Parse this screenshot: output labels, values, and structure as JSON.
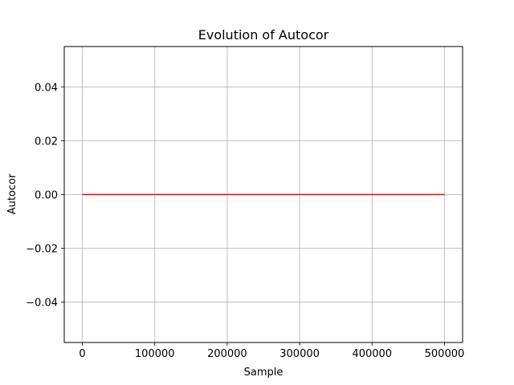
{
  "chart_data": {
    "type": "line",
    "title": "Evolution of Autocor",
    "xlabel": "Sample",
    "ylabel": "Autocor",
    "xlim": [
      -25000,
      525000
    ],
    "ylim": [
      -0.055,
      0.055
    ],
    "x_ticks": [
      0,
      100000,
      200000,
      300000,
      400000,
      500000
    ],
    "x_tick_labels": [
      "0",
      "100000",
      "200000",
      "300000",
      "400000",
      "500000"
    ],
    "y_ticks": [
      -0.04,
      -0.02,
      0.0,
      0.02,
      0.04
    ],
    "y_tick_labels": [
      "−0.04",
      "−0.02",
      "0.00",
      "0.02",
      "0.04"
    ],
    "grid": true,
    "series": [
      {
        "color": "#ff0000",
        "x": [
          0,
          500000
        ],
        "y": [
          0.0,
          0.0
        ]
      }
    ]
  }
}
